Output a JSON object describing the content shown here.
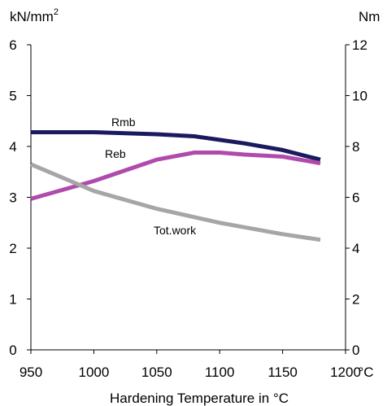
{
  "chart_data": {
    "type": "line",
    "xlabel": "Hardening Temperature in °C",
    "x_unit_suffix": "°C",
    "y_left_unit": "kN/mm",
    "y_left_unit_superscript": "2",
    "y_right_unit": "Nm",
    "xlim": [
      950,
      1200
    ],
    "x_ticks": [
      "950",
      "1000",
      "1050",
      "1100",
      "1150",
      "1200"
    ],
    "ylim_left": [
      0,
      6
    ],
    "y_left_ticks": [
      "0",
      "1",
      "2",
      "3",
      "4",
      "5",
      "6"
    ],
    "ylim_right": [
      0,
      12
    ],
    "y_right_ticks": [
      "0",
      "2",
      "4",
      "6",
      "8",
      "10",
      "12"
    ],
    "grid": false,
    "series": [
      {
        "name": "Rmb",
        "axis": "left",
        "color": "#1a1a5e",
        "x": [
          950,
          1000,
          1050,
          1080,
          1100,
          1120,
          1150,
          1180
        ],
        "y": [
          4.28,
          4.28,
          4.24,
          4.2,
          4.13,
          4.06,
          3.93,
          3.74
        ]
      },
      {
        "name": "Reb",
        "axis": "left",
        "color": "#b04aac",
        "x": [
          950,
          1000,
          1050,
          1080,
          1100,
          1120,
          1150,
          1180
        ],
        "y": [
          2.97,
          3.32,
          3.74,
          3.88,
          3.88,
          3.84,
          3.8,
          3.67
        ]
      },
      {
        "name": "Tot.work",
        "axis": "right",
        "color": "#a6a6a6",
        "x": [
          950,
          1000,
          1050,
          1100,
          1150,
          1180
        ],
        "y": [
          7.3,
          6.25,
          5.55,
          5.0,
          4.55,
          4.33
        ]
      }
    ]
  }
}
